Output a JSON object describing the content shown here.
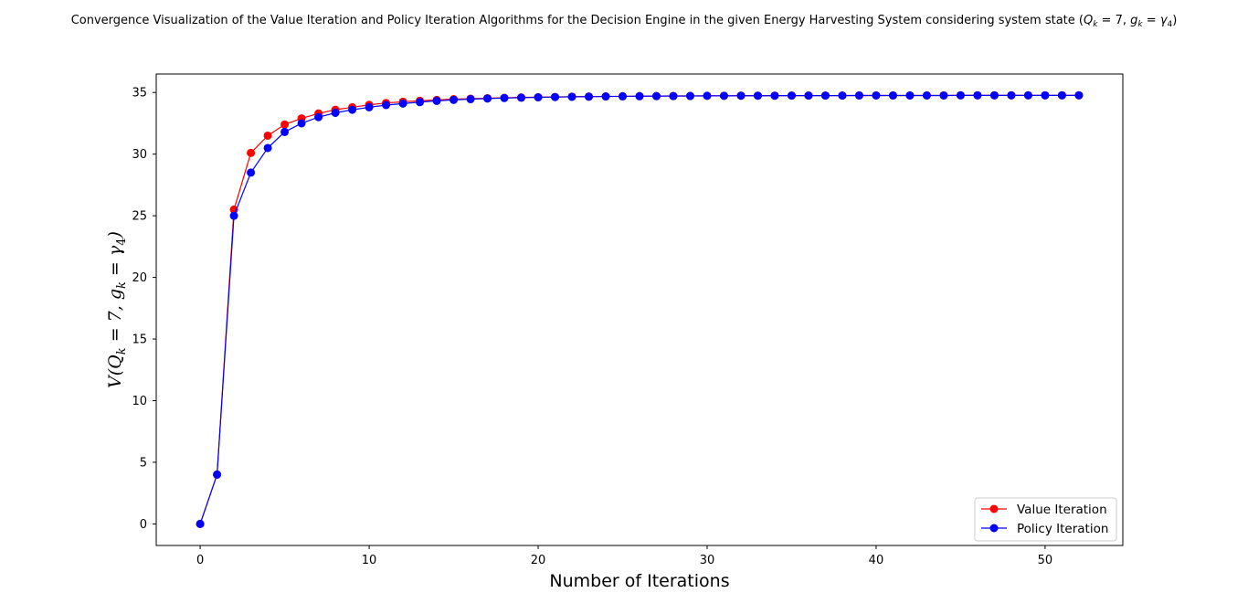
{
  "chart_data": {
    "type": "line",
    "title": "Convergence Visualization of the Value Iteration and Policy Iteration Algorithms for the Decision Engine in the given Energy Harvesting System considering system state (Q_k = 7, g_k = γ4)",
    "title_parts": {
      "prefix": "Convergence Visualization of the Value Iteration and Policy Iteration Algorithms for the Decision Engine in the given Energy Harvesting System considering system state (",
      "q": "Q",
      "k": "k",
      "eq7": " = 7,  ",
      "g": "g",
      "eq": " = ",
      "gamma": "γ",
      "four": "4",
      "close": ")"
    },
    "xlabel": "Number of Iterations",
    "ylabel": "V(Q_k = 7,  g_k = γ4)",
    "ylabel_parts": {
      "prefix": "V(Q",
      "k": "k",
      "mid": " = 7,  g",
      "eq": " = γ",
      "four": "4",
      "close": ")"
    },
    "xlim": [
      -2.6,
      54.6
    ],
    "ylim": [
      -1.75,
      36.5
    ],
    "xticks": [
      0,
      10,
      20,
      30,
      40,
      50
    ],
    "yticks": [
      0,
      5,
      10,
      15,
      20,
      25,
      30,
      35
    ],
    "grid": false,
    "legend_position": "lower-right",
    "x": [
      0,
      1,
      2,
      3,
      4,
      5,
      6,
      7,
      8,
      9,
      10,
      11,
      12,
      13,
      14,
      15,
      16,
      17,
      18,
      19,
      20,
      21,
      22,
      23,
      24,
      25,
      26,
      27,
      28,
      29,
      30,
      31,
      32,
      33,
      34,
      35,
      36,
      37,
      38,
      39,
      40,
      41,
      42,
      43,
      44,
      45,
      46,
      47,
      48,
      49,
      50,
      51,
      52
    ],
    "series": [
      {
        "name": "Value Iteration",
        "color": "#ff0000",
        "values": [
          0,
          4.0,
          25.5,
          30.1,
          31.5,
          32.4,
          32.9,
          33.3,
          33.6,
          33.8,
          34.0,
          34.15,
          34.25,
          34.33,
          34.4,
          34.46,
          34.5,
          34.54,
          34.57,
          34.6,
          34.62,
          34.64,
          34.66,
          34.67,
          34.68,
          34.69,
          34.7,
          34.71,
          34.72,
          34.72,
          34.73,
          34.73,
          34.74,
          34.74,
          34.74,
          34.75,
          34.75,
          34.75,
          34.75,
          34.76,
          34.76,
          34.76,
          34.76,
          34.76,
          34.76,
          34.77,
          34.77,
          34.77,
          34.77,
          34.77,
          34.77,
          34.77,
          34.77
        ]
      },
      {
        "name": "Policy Iteration",
        "color": "#0000ff",
        "values": [
          0,
          4.0,
          25.0,
          28.5,
          30.5,
          31.8,
          32.5,
          33.0,
          33.35,
          33.6,
          33.8,
          33.98,
          34.1,
          34.22,
          34.32,
          34.4,
          34.46,
          34.51,
          34.55,
          34.58,
          34.61,
          34.63,
          34.65,
          34.66,
          34.68,
          34.69,
          34.7,
          34.71,
          34.71,
          34.72,
          34.73,
          34.73,
          34.74,
          34.74,
          34.74,
          34.75,
          34.75,
          34.75,
          34.75,
          34.76,
          34.76,
          34.76,
          34.76,
          34.76,
          34.76,
          34.77,
          34.77,
          34.77,
          34.77,
          34.77,
          34.77,
          34.77,
          34.77
        ]
      }
    ]
  }
}
